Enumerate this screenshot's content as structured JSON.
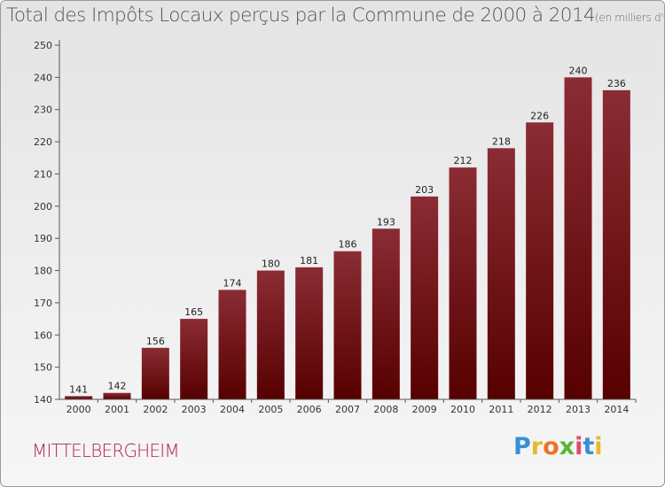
{
  "chart_data": {
    "type": "bar",
    "title": "Total des Impôts Locaux perçus par la Commune de 2000 à 2014",
    "subtitle": "(en milliers d'€)",
    "xlabel": "",
    "ylabel": "",
    "categories": [
      "2000",
      "2001",
      "2002",
      "2003",
      "2004",
      "2005",
      "2006",
      "2007",
      "2008",
      "2009",
      "2010",
      "2011",
      "2012",
      "2013",
      "2014"
    ],
    "values": [
      141,
      142,
      156,
      165,
      174,
      180,
      181,
      186,
      193,
      203,
      212,
      218,
      226,
      240,
      236
    ],
    "ylim": [
      140,
      250
    ],
    "yticks": [
      140,
      150,
      160,
      170,
      180,
      190,
      200,
      210,
      220,
      230,
      240,
      250
    ],
    "grid": false,
    "legend": "none",
    "bar_color_top": "#8b2c34",
    "bar_color_bottom": "#560000"
  },
  "footer": {
    "commune": "MITTELBERGHEIM",
    "brand_letters": [
      {
        "ch": "P",
        "color": "#3a8fd6"
      },
      {
        "ch": "r",
        "color": "#e8b92c"
      },
      {
        "ch": "o",
        "color": "#e8732c"
      },
      {
        "ch": "x",
        "color": "#58b43a"
      },
      {
        "ch": "i",
        "color": "#e04b6a"
      },
      {
        "ch": "t",
        "color": "#3a8fd6"
      },
      {
        "ch": "i",
        "color": "#e8b92c"
      }
    ]
  }
}
